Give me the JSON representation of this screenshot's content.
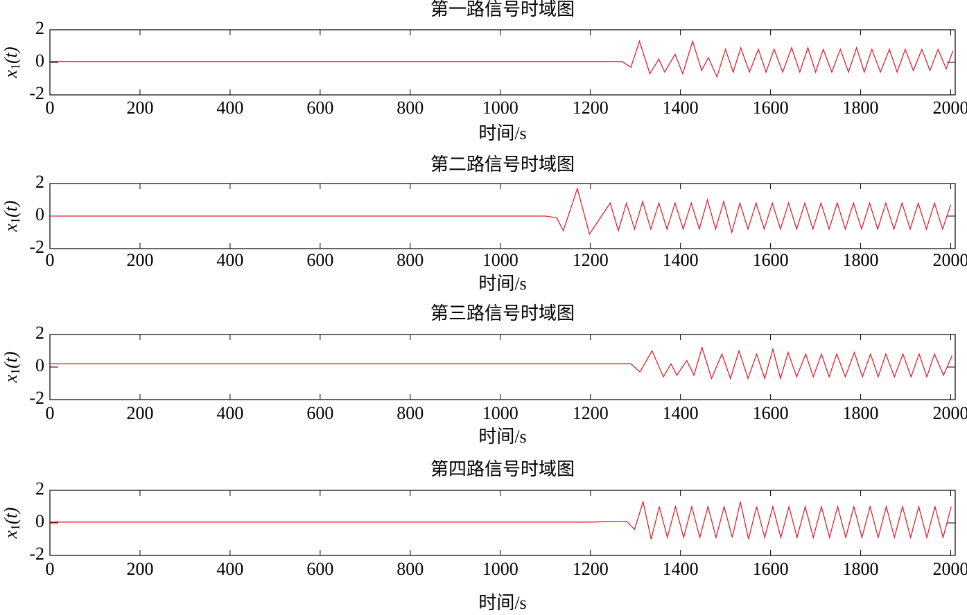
{
  "chart_data": [
    {
      "type": "line",
      "title": "第一路信号时域图",
      "xlabel": "时间/s",
      "ylabel": {
        "main": "x",
        "sub": "1",
        "rest": "(t)"
      },
      "color": "#e0202a",
      "xlim": [
        0,
        2010
      ],
      "ylim": [
        -2,
        2
      ],
      "xticks": [
        0,
        200,
        400,
        600,
        800,
        1000,
        1200,
        1400,
        1600,
        1800,
        2000
      ],
      "yticks": [
        -2,
        0,
        2
      ],
      "x": [
        0,
        200,
        400,
        600,
        800,
        1000,
        1200,
        1270,
        1290,
        1309,
        1332,
        1352,
        1365,
        1388,
        1405,
        1427,
        1447,
        1462,
        1481,
        1500,
        1517,
        1534,
        1553,
        1573,
        1590,
        1608,
        1627,
        1647,
        1665,
        1683,
        1700,
        1717,
        1736,
        1755,
        1773,
        1791,
        1808,
        1825,
        1844,
        1864,
        1881,
        1899,
        1917,
        1936,
        1954,
        1972,
        1990,
        2005
      ],
      "values": [
        0.05,
        0.05,
        0.05,
        0.05,
        0.05,
        0.05,
        0.05,
        0.05,
        -0.3,
        1.3,
        -0.7,
        0.2,
        -0.6,
        0.5,
        -0.7,
        1.3,
        -0.5,
        0.3,
        -0.9,
        0.8,
        -0.6,
        0.9,
        -0.6,
        0.8,
        -0.6,
        0.8,
        -0.6,
        0.9,
        -0.6,
        0.9,
        -0.6,
        0.8,
        -0.6,
        0.8,
        -0.6,
        0.9,
        -0.6,
        0.8,
        -0.6,
        0.8,
        -0.6,
        0.8,
        -0.5,
        0.8,
        -0.5,
        0.8,
        -0.4,
        0.7
      ]
    },
    {
      "type": "line",
      "title": "第二路信号时域图",
      "xlabel": "时间/s",
      "ylabel": {
        "main": "x",
        "sub": "1",
        "rest": "(t)"
      },
      "color": "#e0202a",
      "xlim": [
        0,
        2010
      ],
      "ylim": [
        -2,
        2
      ],
      "xticks": [
        0,
        200,
        400,
        600,
        800,
        1000,
        1200,
        1400,
        1600,
        1800,
        2000
      ],
      "yticks": [
        -2,
        0,
        2
      ],
      "x": [
        0,
        200,
        400,
        600,
        800,
        1000,
        1100,
        1125,
        1140,
        1171,
        1198,
        1244,
        1262,
        1280,
        1298,
        1316,
        1334,
        1352,
        1370,
        1388,
        1406,
        1424,
        1442,
        1460,
        1478,
        1496,
        1514,
        1532,
        1550,
        1568,
        1586,
        1604,
        1622,
        1640,
        1658,
        1676,
        1694,
        1712,
        1730,
        1748,
        1766,
        1784,
        1802,
        1820,
        1838,
        1856,
        1874,
        1892,
        1910,
        1928,
        1946,
        1964,
        1982,
        2000
      ],
      "values": [
        0,
        0,
        0,
        0,
        0,
        0,
        0,
        -0.1,
        -0.9,
        1.7,
        -1.1,
        0.8,
        -0.9,
        0.8,
        -0.8,
        0.9,
        -0.8,
        0.8,
        -0.8,
        0.8,
        -0.8,
        0.8,
        -0.8,
        1.0,
        -0.8,
        0.9,
        -1.0,
        0.8,
        -0.8,
        0.8,
        -0.8,
        0.8,
        -0.8,
        0.8,
        -0.8,
        0.8,
        -0.8,
        0.8,
        -0.8,
        0.8,
        -0.8,
        0.8,
        -0.8,
        0.8,
        -0.8,
        0.8,
        -0.8,
        0.8,
        -0.8,
        0.8,
        -0.8,
        0.8,
        -0.8,
        0.7
      ]
    },
    {
      "type": "line",
      "title": "第三路信号时域图",
      "xlabel": "时间/s",
      "ylabel": {
        "main": "x",
        "sub": "1",
        "rest": "(t)"
      },
      "color": "#e0202a",
      "xlim": [
        0,
        2010
      ],
      "ylim": [
        -2,
        2
      ],
      "xticks": [
        0,
        200,
        400,
        600,
        800,
        1000,
        1200,
        1400,
        1600,
        1800,
        2000
      ],
      "yticks": [
        -2,
        0,
        2
      ],
      "x": [
        0,
        200,
        400,
        600,
        800,
        1000,
        1200,
        1290,
        1310,
        1337,
        1362,
        1379,
        1392,
        1414,
        1430,
        1448,
        1469,
        1492,
        1511,
        1530,
        1550,
        1569,
        1587,
        1605,
        1622,
        1639,
        1658,
        1678,
        1695,
        1713,
        1730,
        1747,
        1766,
        1786,
        1804,
        1822,
        1839,
        1856,
        1875,
        1894,
        1912,
        1930,
        1947,
        1964,
        1984,
        2003
      ],
      "values": [
        0.2,
        0.2,
        0.2,
        0.2,
        0.2,
        0.2,
        0.2,
        0.2,
        -0.3,
        1.0,
        -0.6,
        0.2,
        -0.5,
        0.4,
        -0.5,
        1.2,
        -0.7,
        0.8,
        -0.7,
        1.0,
        -0.7,
        0.8,
        -0.7,
        1.1,
        -0.7,
        0.9,
        -0.6,
        0.8,
        -0.6,
        0.8,
        -0.6,
        0.8,
        -0.6,
        0.9,
        -0.6,
        0.8,
        -0.6,
        0.8,
        -0.6,
        0.8,
        -0.6,
        0.8,
        -0.6,
        0.8,
        -0.5,
        0.7
      ]
    },
    {
      "type": "line",
      "title": "第四路信号时域图",
      "xlabel": "时间/s",
      "ylabel": {
        "main": "x",
        "sub": "1",
        "rest": "(t)"
      },
      "color": "#e0202a",
      "xlim": [
        0,
        2010
      ],
      "ylim": [
        -2,
        2
      ],
      "xticks": [
        0,
        200,
        400,
        600,
        800,
        1000,
        1200,
        1400,
        1600,
        1800,
        2000
      ],
      "yticks": [
        -2,
        0,
        2
      ],
      "x": [
        0,
        200,
        400,
        600,
        800,
        1000,
        1200,
        1280,
        1298,
        1317,
        1335,
        1353,
        1371,
        1389,
        1407,
        1425,
        1443,
        1461,
        1479,
        1497,
        1515,
        1533,
        1551,
        1569,
        1587,
        1605,
        1623,
        1641,
        1659,
        1677,
        1695,
        1713,
        1731,
        1749,
        1767,
        1785,
        1803,
        1821,
        1839,
        1857,
        1875,
        1893,
        1911,
        1929,
        1947,
        1965,
        1983,
        2001
      ],
      "values": [
        0.05,
        0.05,
        0.05,
        0.05,
        0.05,
        0.05,
        0.05,
        0.1,
        -0.4,
        1.3,
        -1.0,
        1.0,
        -0.9,
        1.0,
        -0.9,
        1.0,
        -0.9,
        1.0,
        -0.9,
        1.0,
        -0.9,
        1.3,
        -1.0,
        1.0,
        -0.9,
        1.0,
        -0.9,
        1.0,
        -0.9,
        1.0,
        -0.9,
        1.0,
        -0.9,
        1.0,
        -0.9,
        1.0,
        -0.9,
        1.0,
        -0.9,
        1.0,
        -0.9,
        1.0,
        -0.9,
        1.0,
        -0.9,
        1.0,
        -0.9,
        1.0
      ]
    }
  ]
}
